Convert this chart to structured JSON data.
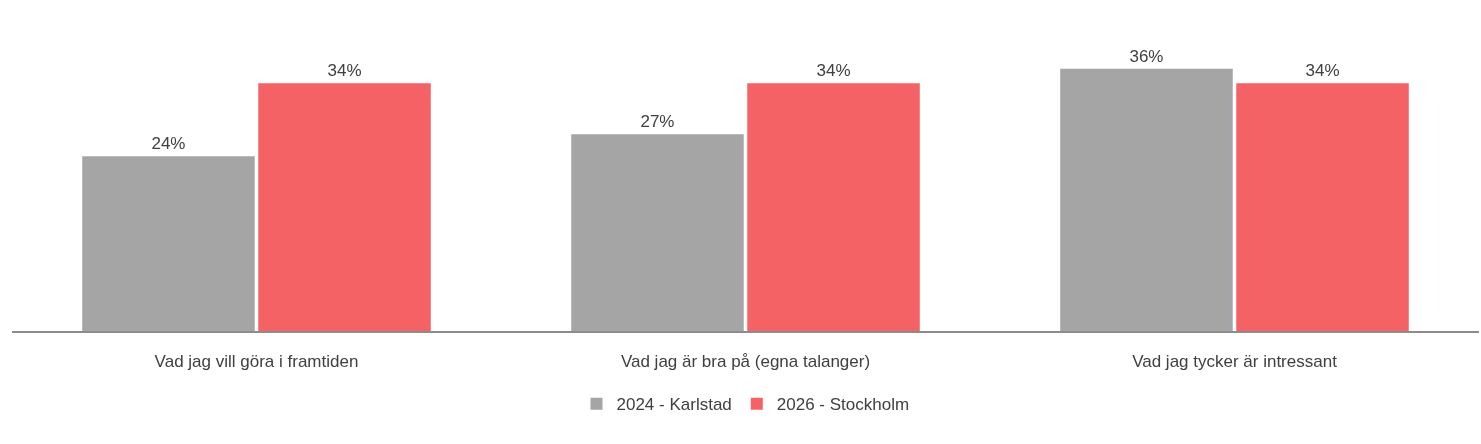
{
  "chart_data": {
    "type": "bar",
    "categories": [
      "Vad jag vill göra i framtiden",
      "Vad jag är bra på (egna talanger)",
      "Vad jag tycker är intressant"
    ],
    "series": [
      {
        "name": "2024 - Karlstad",
        "color": "#a5a5a5",
        "values": [
          24,
          27,
          36
        ],
        "value_labels": [
          "24%",
          "27%",
          "36%"
        ]
      },
      {
        "name": "2026 - Stockholm",
        "color": "#f46265",
        "values": [
          34,
          34,
          34
        ],
        "value_labels": [
          "34%",
          "34%",
          "34%"
        ]
      }
    ],
    "legend": "bottom"
  }
}
